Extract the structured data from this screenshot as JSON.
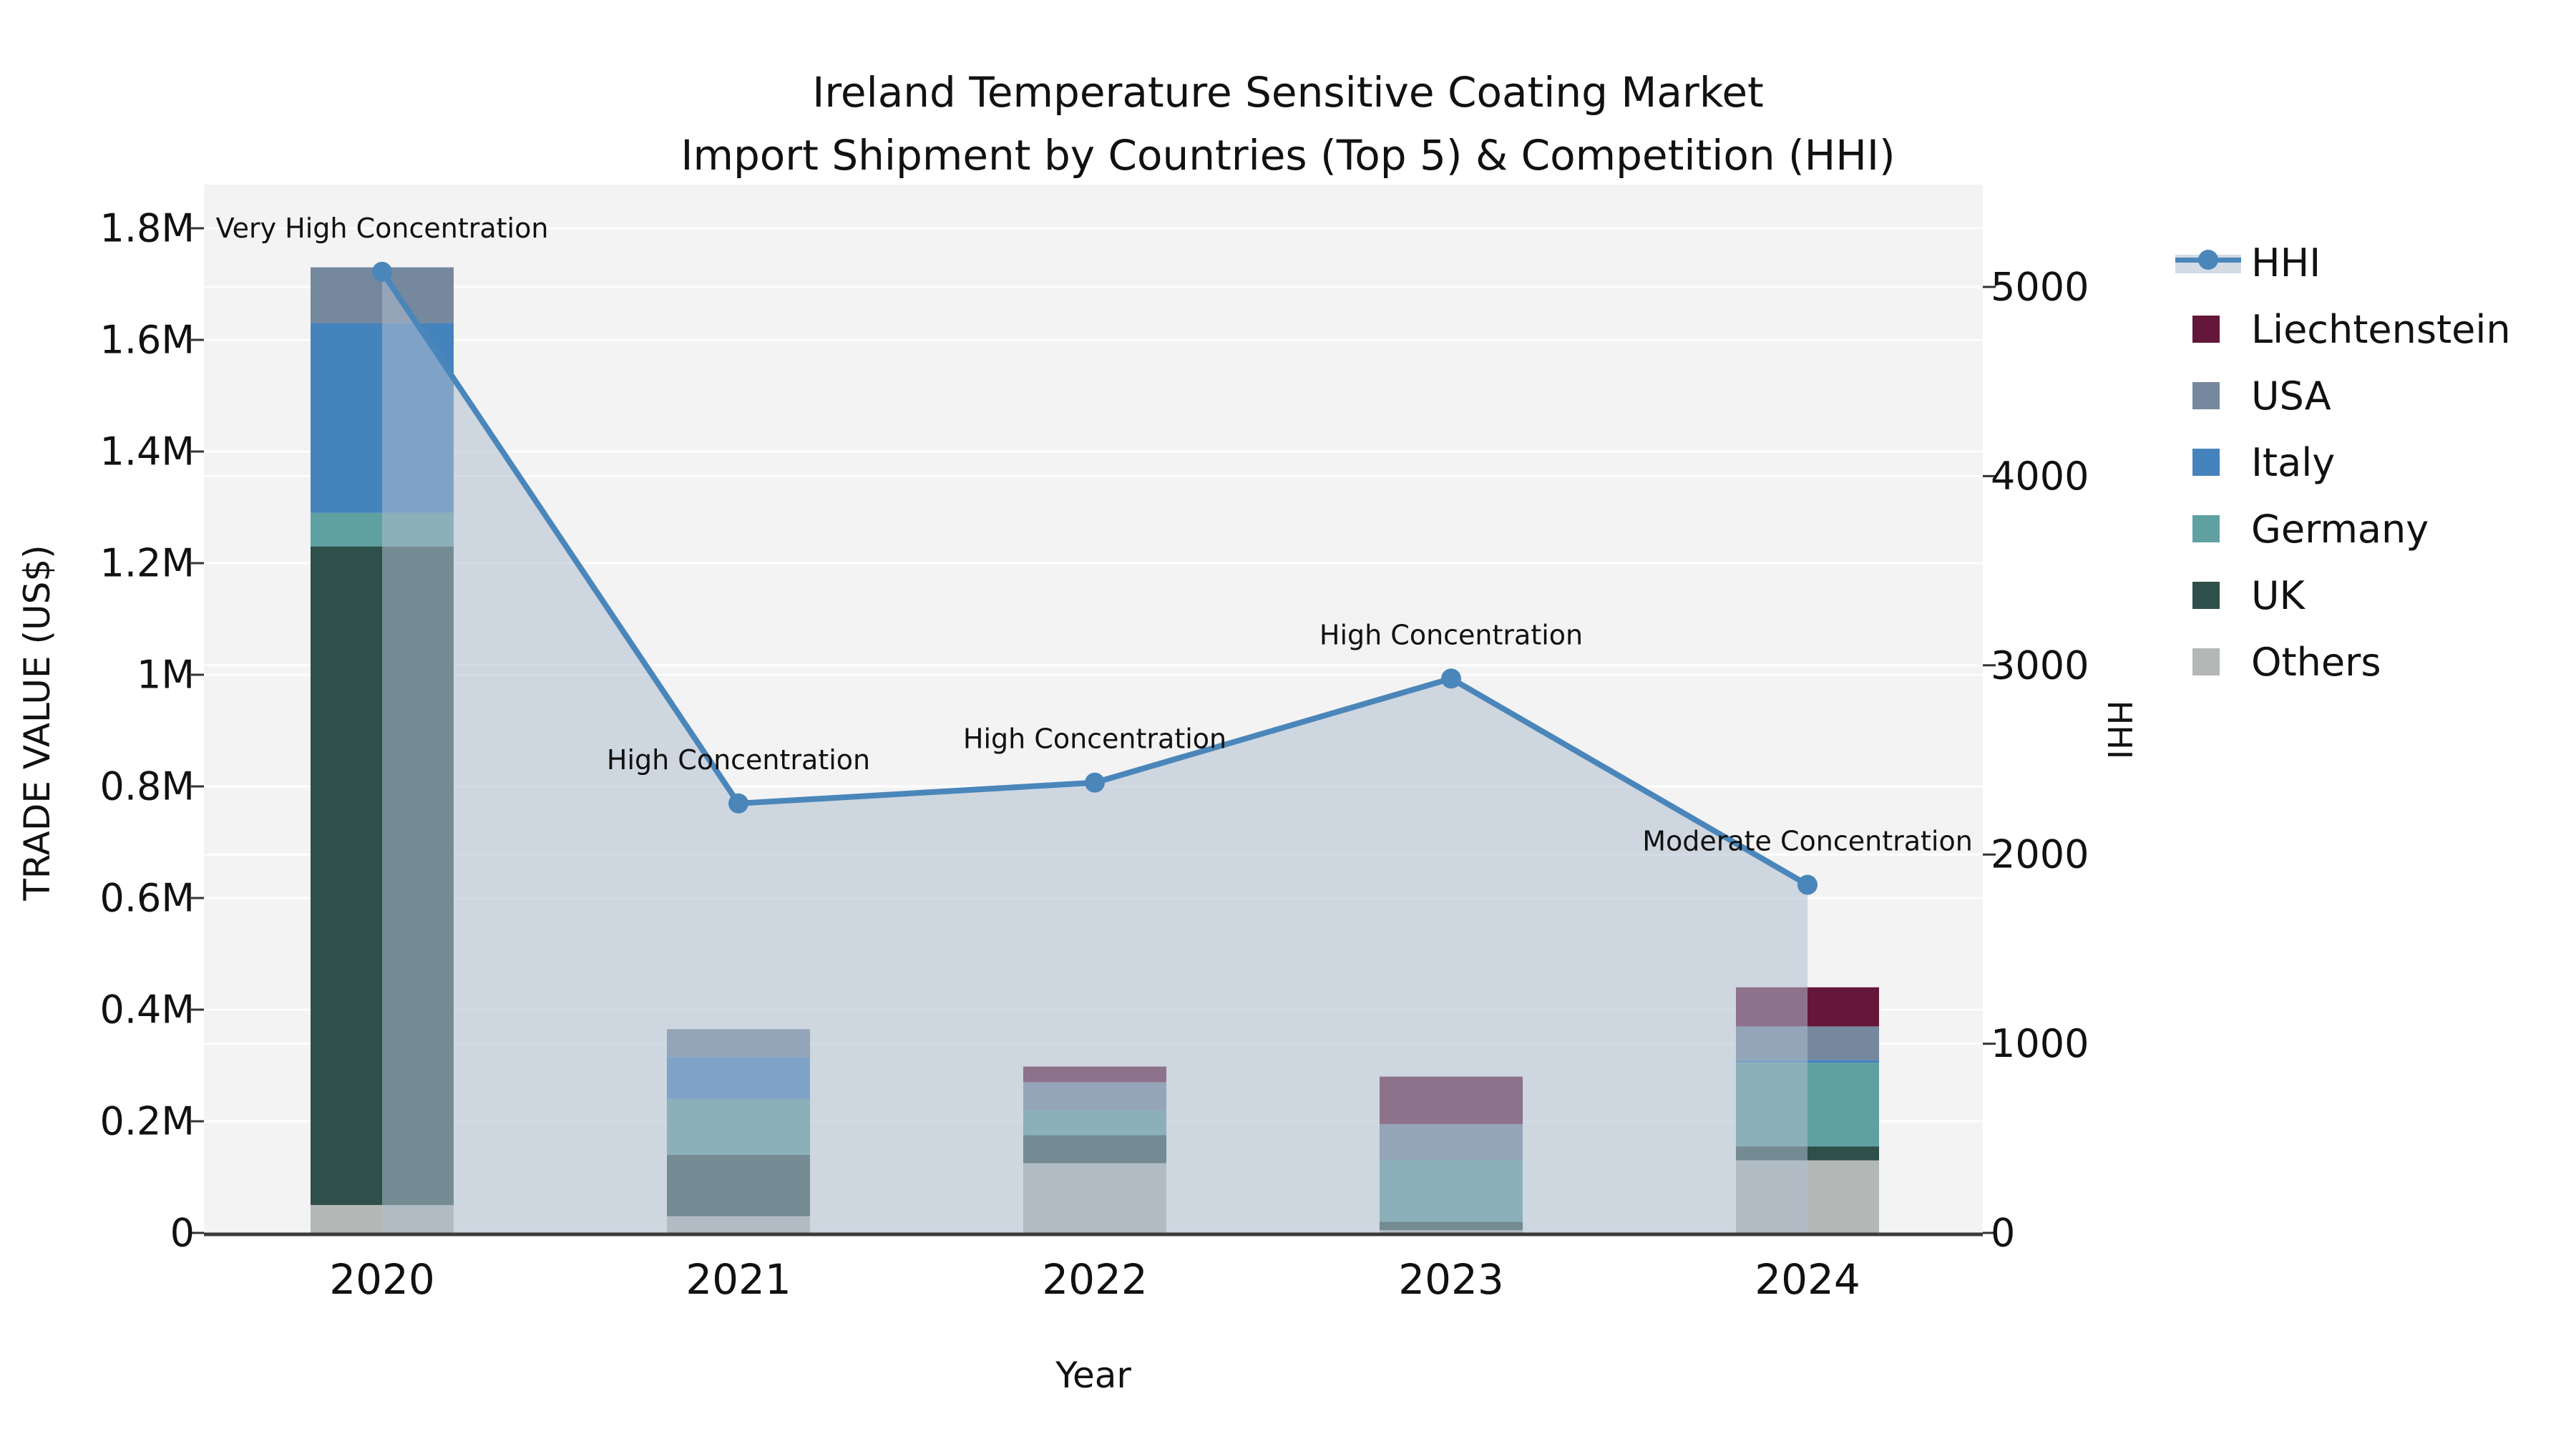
{
  "chart_data": {
    "type": "bar+line",
    "title": "Ireland Temperature Sensitive Coating Market",
    "subtitle": "Import Shipment by Countries (Top 5) & Competition (HHI)",
    "xlabel": "Year",
    "ylabel_left": "TRADE VALUE (US$)",
    "ylabel_right": "HHI",
    "categories": [
      "2020",
      "2021",
      "2022",
      "2023",
      "2024"
    ],
    "stack_order_bottom_to_top": [
      "Others",
      "UK",
      "Germany",
      "Italy",
      "USA",
      "Liechtenstein"
    ],
    "series": [
      {
        "name": "Liechtenstein",
        "color": "#64173a",
        "values": [
          0,
          0,
          28000,
          85000,
          70000
        ]
      },
      {
        "name": "USA",
        "color": "#75889e",
        "values": [
          100000,
          50000,
          50000,
          65000,
          60000
        ]
      },
      {
        "name": "Italy",
        "color": "#4583bd",
        "values": [
          340000,
          75000,
          0,
          0,
          5000
        ]
      },
      {
        "name": "Germany",
        "color": "#5fa0a0",
        "values": [
          60000,
          100000,
          45000,
          110000,
          150000
        ]
      },
      {
        "name": "UK",
        "color": "#2e4f4a",
        "values": [
          1180000,
          110000,
          50000,
          15000,
          25000
        ]
      },
      {
        "name": "Others",
        "color": "#b3b8b6",
        "values": [
          50000,
          30000,
          125000,
          5000,
          130000
        ]
      }
    ],
    "line_series": {
      "name": "HHI",
      "color": "#4a86ba",
      "fill_color": "rgba(174,189,208,0.55)",
      "values": [
        5080,
        2270,
        2380,
        2930,
        1840
      ]
    },
    "annotations": [
      "Very High Concentration",
      "High Concentration",
      "High Concentration",
      "High Concentration",
      "Moderate Concentration"
    ],
    "y_left_axis": {
      "ticks": [
        {
          "label": "0",
          "value": 0
        },
        {
          "label": "0.2M",
          "value": 200000
        },
        {
          "label": "0.4M",
          "value": 400000
        },
        {
          "label": "0.6M",
          "value": 600000
        },
        {
          "label": "0.8M",
          "value": 800000
        },
        {
          "label": "1M",
          "value": 1000000
        },
        {
          "label": "1.2M",
          "value": 1200000
        },
        {
          "label": "1.4M",
          "value": 1400000
        },
        {
          "label": "1.6M",
          "value": 1600000
        },
        {
          "label": "1.8M",
          "value": 1800000
        }
      ]
    },
    "y_right_axis": {
      "ticks": [
        {
          "label": "0",
          "value": 0
        },
        {
          "label": "1000",
          "value": 1000
        },
        {
          "label": "2000",
          "value": 2000
        },
        {
          "label": "3000",
          "value": 3000
        },
        {
          "label": "4000",
          "value": 4000
        },
        {
          "label": "5000",
          "value": 5000
        }
      ]
    },
    "plot_background": "#f3f3f4",
    "gridline_color": "#ffffff",
    "axis_line_color": "#3a3a3a"
  },
  "legend": {
    "items": [
      {
        "label": "HHI",
        "key": "HHI",
        "type": "line"
      },
      {
        "label": "Liechtenstein",
        "key": "Liechtenstein",
        "type": "box"
      },
      {
        "label": "USA",
        "key": "USA",
        "type": "box"
      },
      {
        "label": "Italy",
        "key": "Italy",
        "type": "box"
      },
      {
        "label": "Germany",
        "key": "Germany",
        "type": "box"
      },
      {
        "label": "UK",
        "key": "UK",
        "type": "box"
      },
      {
        "label": "Others",
        "key": "Others",
        "type": "box"
      }
    ]
  }
}
